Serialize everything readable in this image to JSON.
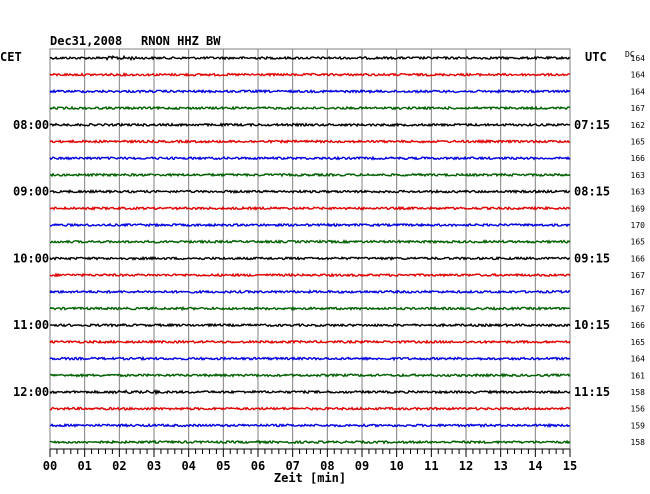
{
  "header": {
    "date": "Dec31,2008",
    "station": "RNON HHZ BW",
    "left_zone": "CET",
    "right_zone": "UTC",
    "dc_label": "DC"
  },
  "chart_data": {
    "type": "line",
    "title": "Dec31,2008   RNON HHZ BW",
    "xlabel": "Zeit [min]",
    "xlim": [
      0,
      15
    ],
    "x_ticks": [
      "00",
      "01",
      "02",
      "03",
      "04",
      "05",
      "06",
      "07",
      "08",
      "09",
      "10",
      "11",
      "12",
      "13",
      "14",
      "15"
    ],
    "trace_interval_min": 15,
    "trace_count": 24,
    "trace_colors": [
      "#000000",
      "#e00000",
      "#0000e0",
      "#006000"
    ],
    "left_hour_labels": [
      {
        "trace": 4,
        "label": "08:00"
      },
      {
        "trace": 8,
        "label": "09:00"
      },
      {
        "trace": 12,
        "label": "10:00"
      },
      {
        "trace": 16,
        "label": "11:00"
      },
      {
        "trace": 20,
        "label": "12:00"
      }
    ],
    "right_hour_labels": [
      {
        "trace": 4,
        "label": "07:15"
      },
      {
        "trace": 8,
        "label": "08:15"
      },
      {
        "trace": 12,
        "label": "09:15"
      },
      {
        "trace": 16,
        "label": "10:15"
      },
      {
        "trace": 20,
        "label": "11:15"
      }
    ],
    "dc_offsets": [
      164,
      164,
      164,
      167,
      162,
      165,
      166,
      163,
      163,
      169,
      170,
      165,
      166,
      167,
      167,
      167,
      166,
      165,
      164,
      161,
      158,
      156,
      159,
      158
    ]
  }
}
